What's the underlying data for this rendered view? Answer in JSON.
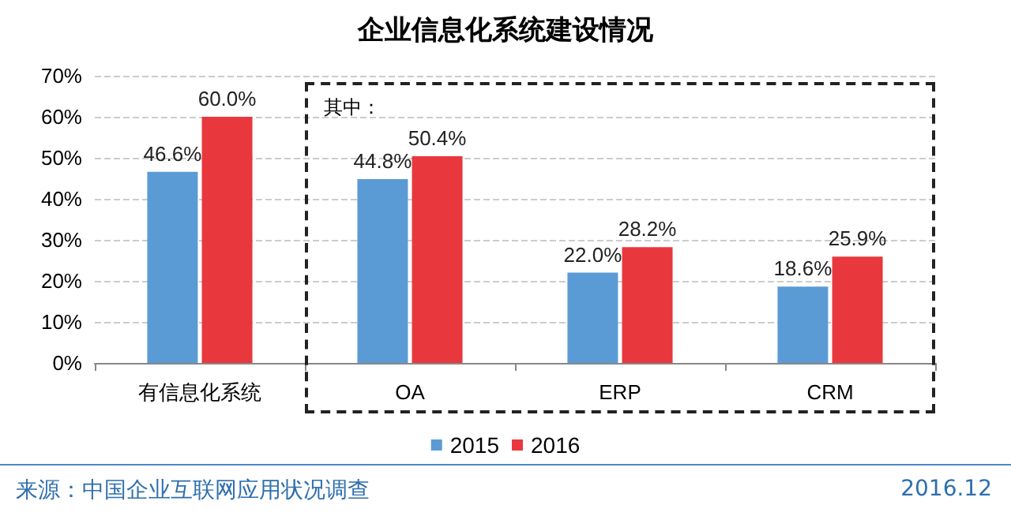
{
  "chart_data": {
    "type": "bar",
    "title": "企业信息化系统建设情况",
    "categories": [
      "有信息化系统",
      "OA",
      "ERP",
      "CRM"
    ],
    "series": [
      {
        "name": "2015",
        "color": "#5b9bd5",
        "values": [
          46.6,
          44.8,
          22.0,
          18.6
        ],
        "value_labels": [
          "46.6%",
          "44.8%",
          "22.0%",
          "18.6%"
        ]
      },
      {
        "name": "2016",
        "color": "#e8383d",
        "values": [
          60.0,
          50.4,
          28.2,
          25.9
        ],
        "value_labels": [
          "60.0%",
          "50.4%",
          "28.2%",
          "25.9%"
        ]
      }
    ],
    "ylim": [
      0,
      70
    ],
    "yticks": [
      {
        "value": 0,
        "label": "0%"
      },
      {
        "value": 10,
        "label": "10%"
      },
      {
        "value": 20,
        "label": "20%"
      },
      {
        "value": 30,
        "label": "30%"
      },
      {
        "value": 40,
        "label": "40%"
      },
      {
        "value": 50,
        "label": "50%"
      },
      {
        "value": 60,
        "label": "60%"
      },
      {
        "value": 70,
        "label": "70%"
      }
    ],
    "grid": "y",
    "legend": "bottom",
    "annotations": [
      "其中：",
      "来源：中国企业互联网应用状况调查",
      "2016.12"
    ]
  }
}
